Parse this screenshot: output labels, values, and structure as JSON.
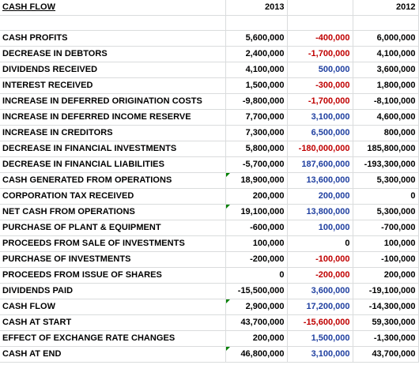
{
  "header": {
    "title": "CASH FLOW",
    "year_a": "2013",
    "year_b": "2012"
  },
  "rows": [
    {
      "label": "CASH PROFITS",
      "v2013": "5,600,000",
      "change": "-400,000",
      "change_color": "red",
      "v2012": "6,000,000"
    },
    {
      "label": "DECREASE IN DEBTORS",
      "v2013": "2,400,000",
      "change": "-1,700,000",
      "change_color": "red",
      "v2012": "4,100,000"
    },
    {
      "label": "DIVIDENDS RECEIVED",
      "v2013": "4,100,000",
      "change": "500,000",
      "change_color": "blue",
      "v2012": "3,600,000"
    },
    {
      "label": "INTEREST RECEIVED",
      "v2013": "1,500,000",
      "change": "-300,000",
      "change_color": "red",
      "v2012": "1,800,000"
    },
    {
      "label": "INCREASE IN DEFERRED ORIGINATION COSTS",
      "v2013": "-9,800,000",
      "change": "-1,700,000",
      "change_color": "red",
      "v2012": "-8,100,000"
    },
    {
      "label": "INCREASE IN DEFERRED INCOME RESERVE",
      "v2013": "7,700,000",
      "change": "3,100,000",
      "change_color": "blue",
      "v2012": "4,600,000"
    },
    {
      "label": "INCREASE IN CREDITORS",
      "v2013": "7,300,000",
      "change": "6,500,000",
      "change_color": "blue",
      "v2012": "800,000"
    },
    {
      "label": "DECREASE IN FINANCIAL INVESTMENTS",
      "v2013": "5,800,000",
      "change": "-180,000,000",
      "change_color": "red",
      "v2012": "185,800,000"
    },
    {
      "label": "DECREASE IN FINANCIAL LIABILITIES",
      "v2013": "-5,700,000",
      "change": "187,600,000",
      "change_color": "blue",
      "v2012": "-193,300,000"
    },
    {
      "label": "CASH GENERATED FROM OPERATIONS",
      "v2013": "18,900,000",
      "change": "13,600,000",
      "change_color": "blue",
      "v2012": "5,300,000",
      "flag": true
    },
    {
      "label": "CORPORATION TAX RECEIVED",
      "v2013": "200,000",
      "change": "200,000",
      "change_color": "blue",
      "v2012": "0"
    },
    {
      "label": "NET CASH FROM OPERATIONS",
      "v2013": "19,100,000",
      "change": "13,800,000",
      "change_color": "blue",
      "v2012": "5,300,000",
      "flag": true
    },
    {
      "label": "PURCHASE OF PLANT & EQUIPMENT",
      "v2013": "-600,000",
      "change": "100,000",
      "change_color": "blue",
      "v2012": "-700,000"
    },
    {
      "label": "PROCEEDS FROM SALE OF INVESTMENTS",
      "v2013": "100,000",
      "change": "0",
      "change_color": "black",
      "v2012": "100,000"
    },
    {
      "label": "PURCHASE OF INVESTMENTS",
      "v2013": "-200,000",
      "change": "-100,000",
      "change_color": "red",
      "v2012": "-100,000"
    },
    {
      "label": "PROCEEDS FROM ISSUE OF SHARES",
      "v2013": "0",
      "change": "-200,000",
      "change_color": "red",
      "v2012": "200,000"
    },
    {
      "label": "DIVIDENDS PAID",
      "v2013": "-15,500,000",
      "change": "3,600,000",
      "change_color": "blue",
      "v2012": "-19,100,000"
    },
    {
      "label": "CASH FLOW",
      "v2013": "2,900,000",
      "change": "17,200,000",
      "change_color": "blue",
      "v2012": "-14,300,000",
      "flag": true
    },
    {
      "label": "CASH AT START",
      "v2013": "43,700,000",
      "change": "-15,600,000",
      "change_color": "red",
      "v2012": "59,300,000"
    },
    {
      "label": "EFFECT OF EXCHANGE RATE CHANGES",
      "v2013": "200,000",
      "change": "1,500,000",
      "change_color": "blue",
      "v2012": "-1,300,000"
    },
    {
      "label": "CASH AT END",
      "v2013": "46,800,000",
      "change": "3,100,000",
      "change_color": "blue",
      "v2012": "43,700,000",
      "flag": true
    }
  ]
}
